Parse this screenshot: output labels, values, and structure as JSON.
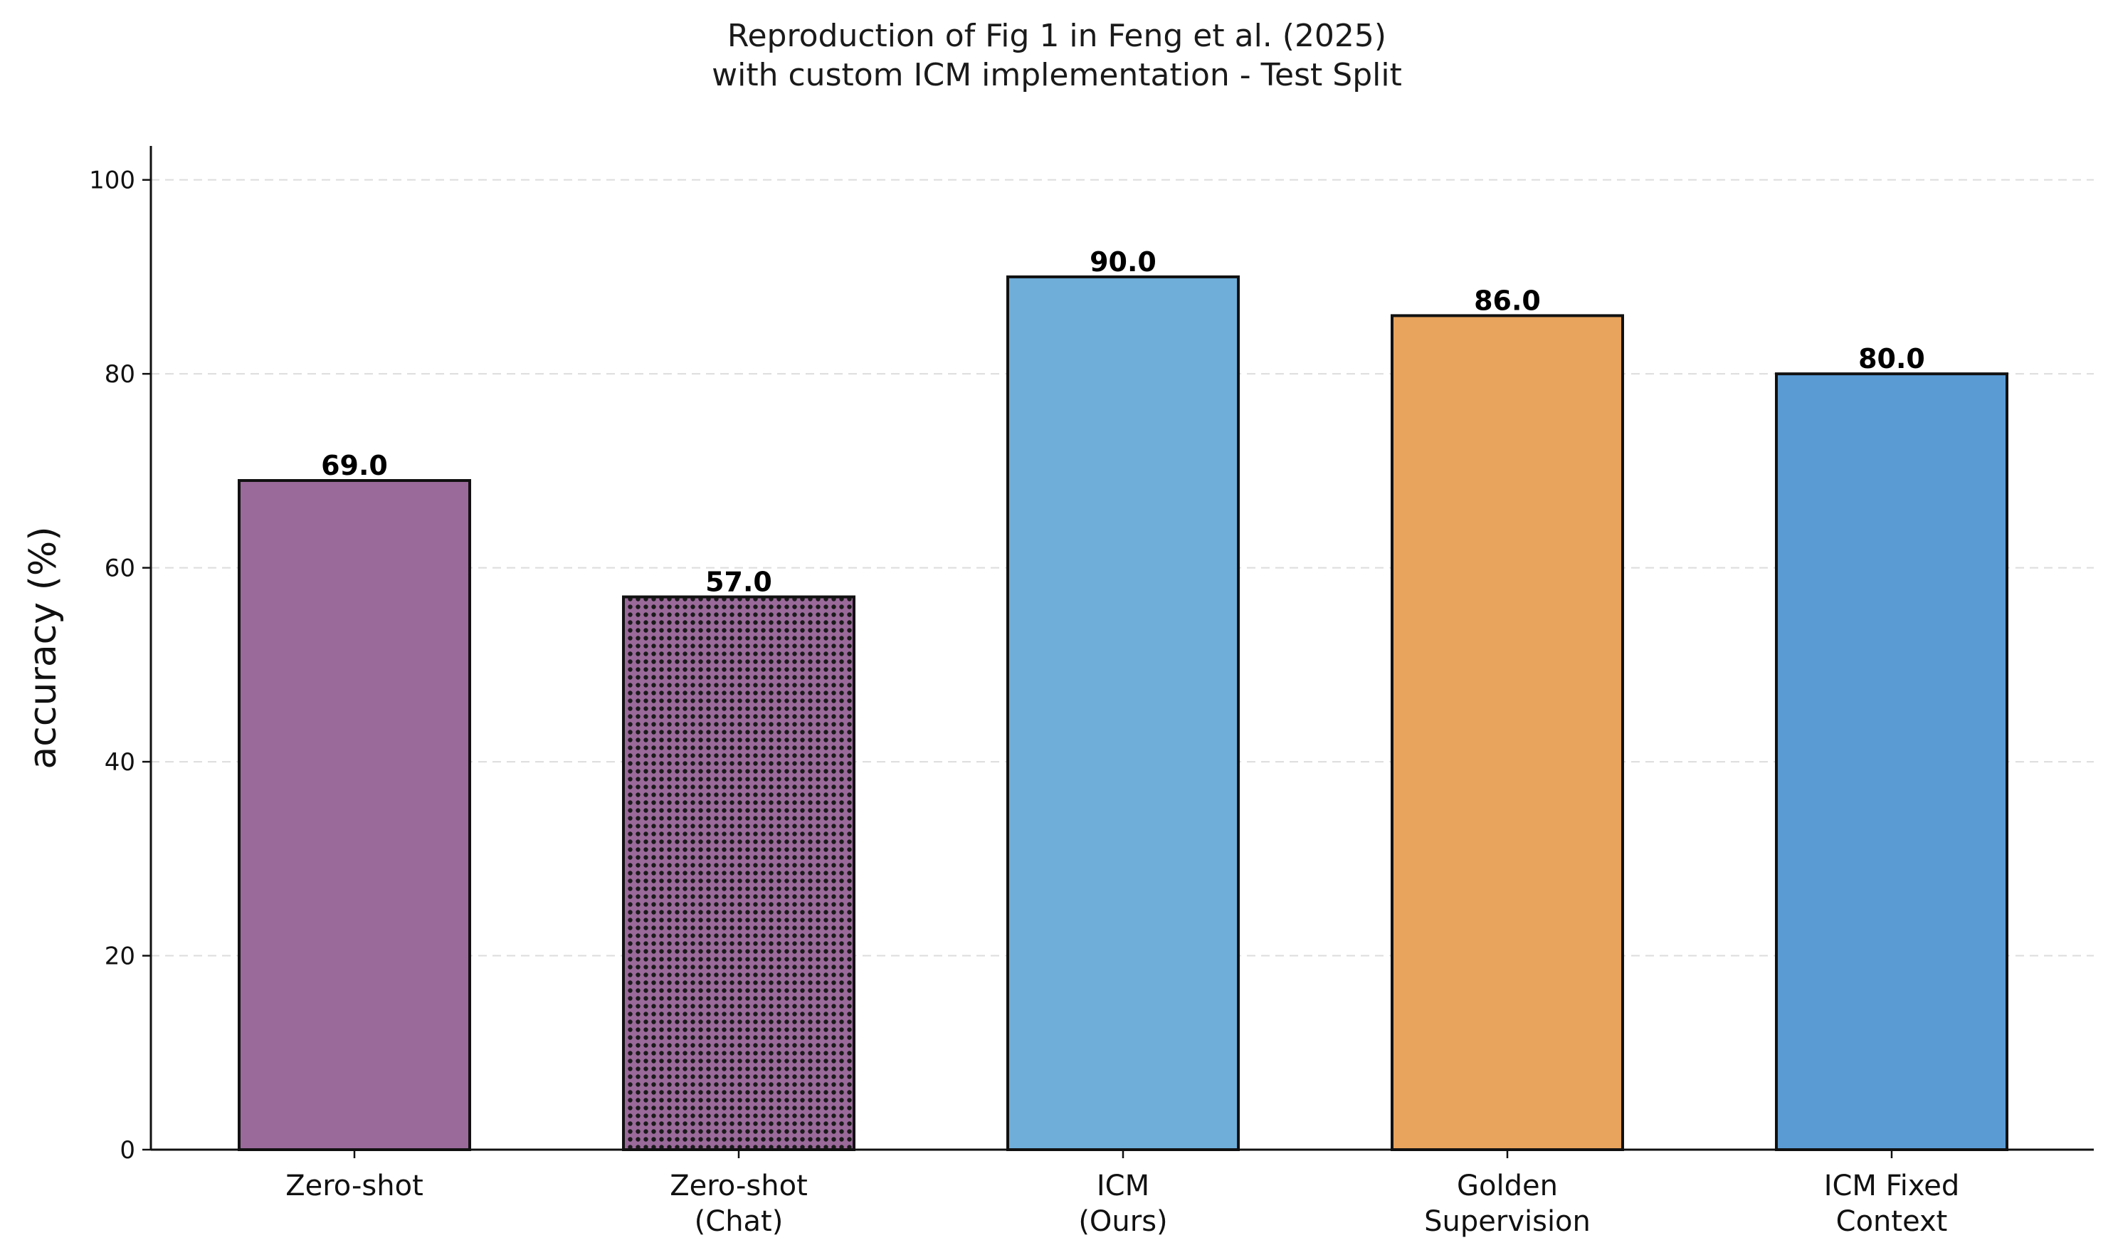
{
  "chart_data": {
    "type": "bar",
    "title_lines": [
      "Reproduction of Fig 1 in Feng et al. (2025)",
      "with custom ICM implementation - Test Split"
    ],
    "xlabel": "",
    "ylabel": "accuracy (%)",
    "ylim": [
      0,
      103.5
    ],
    "yticks": [
      0,
      20,
      40,
      60,
      80,
      100
    ],
    "grid": "y-dashed",
    "categories": [
      [
        "Zero-shot"
      ],
      [
        "Zero-shot",
        "(Chat)"
      ],
      [
        "ICM",
        "(Ours)"
      ],
      [
        "Golden",
        "Supervision"
      ],
      [
        "ICM Fixed",
        "Context"
      ]
    ],
    "values": [
      69.0,
      57.0,
      90.0,
      86.0,
      80.0
    ],
    "value_labels": [
      "69.0",
      "57.0",
      "90.0",
      "86.0",
      "80.0"
    ],
    "colors": [
      "#9a6a9a",
      "#9a6a9a",
      "#6eaed9",
      "#e8a35c",
      "#5a9bd4"
    ],
    "hatch": [
      false,
      true,
      false,
      false,
      false
    ]
  }
}
